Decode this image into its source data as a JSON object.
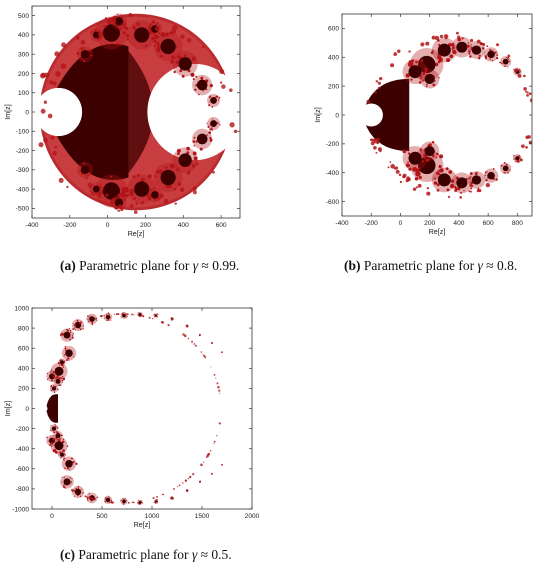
{
  "figures": [
    {
      "caption": {
        "tag": "(a)",
        "text": "Parametric plane for",
        "symbol": "γ",
        "approx": "≈ 0.99."
      },
      "chart_data": {
        "type": "heatmap",
        "xlabel": "Re[z]",
        "ylabel": "Im[z]",
        "xlim": [
          -400,
          700
        ],
        "ylim": [
          -550,
          550
        ],
        "xticks": [
          -400,
          -200,
          0,
          200,
          400,
          600
        ],
        "yticks": [
          -500,
          -400,
          -300,
          -200,
          -100,
          0,
          100,
          200,
          300,
          400,
          500
        ],
        "colormap": [
          "#ffffff",
          "#b31418",
          "#3c0000"
        ]
      }
    },
    {
      "caption": {
        "tag": "(b)",
        "text": "Parametric plane for",
        "symbol": "γ",
        "approx": "≈ 0.8."
      },
      "chart_data": {
        "type": "heatmap",
        "xlabel": "Re[z]",
        "ylabel": "Im[z]",
        "xlim": [
          -400,
          900
        ],
        "ylim": [
          -700,
          700
        ],
        "xticks": [
          -400,
          -200,
          0,
          200,
          400,
          600,
          800
        ],
        "yticks": [
          -600,
          -400,
          -200,
          0,
          200,
          400,
          600
        ],
        "colormap": [
          "#ffffff",
          "#b31418",
          "#3c0000"
        ]
      }
    },
    {
      "caption": {
        "tag": "(c)",
        "text": "Parametric plane for",
        "symbol": "γ",
        "approx": "≈ 0.5."
      },
      "chart_data": {
        "type": "heatmap",
        "xlabel": "Re[z]",
        "ylabel": "Im[z]",
        "xlim": [
          -200,
          2000
        ],
        "ylim": [
          -1000,
          1000
        ],
        "xticks": [
          0,
          500,
          1000,
          1500,
          2000
        ],
        "yticks": [
          -1000,
          -800,
          -600,
          -400,
          -200,
          0,
          200,
          400,
          600,
          800,
          1000
        ],
        "colormap": [
          "#ffffff",
          "#b31418",
          "#3c0000"
        ]
      }
    }
  ]
}
